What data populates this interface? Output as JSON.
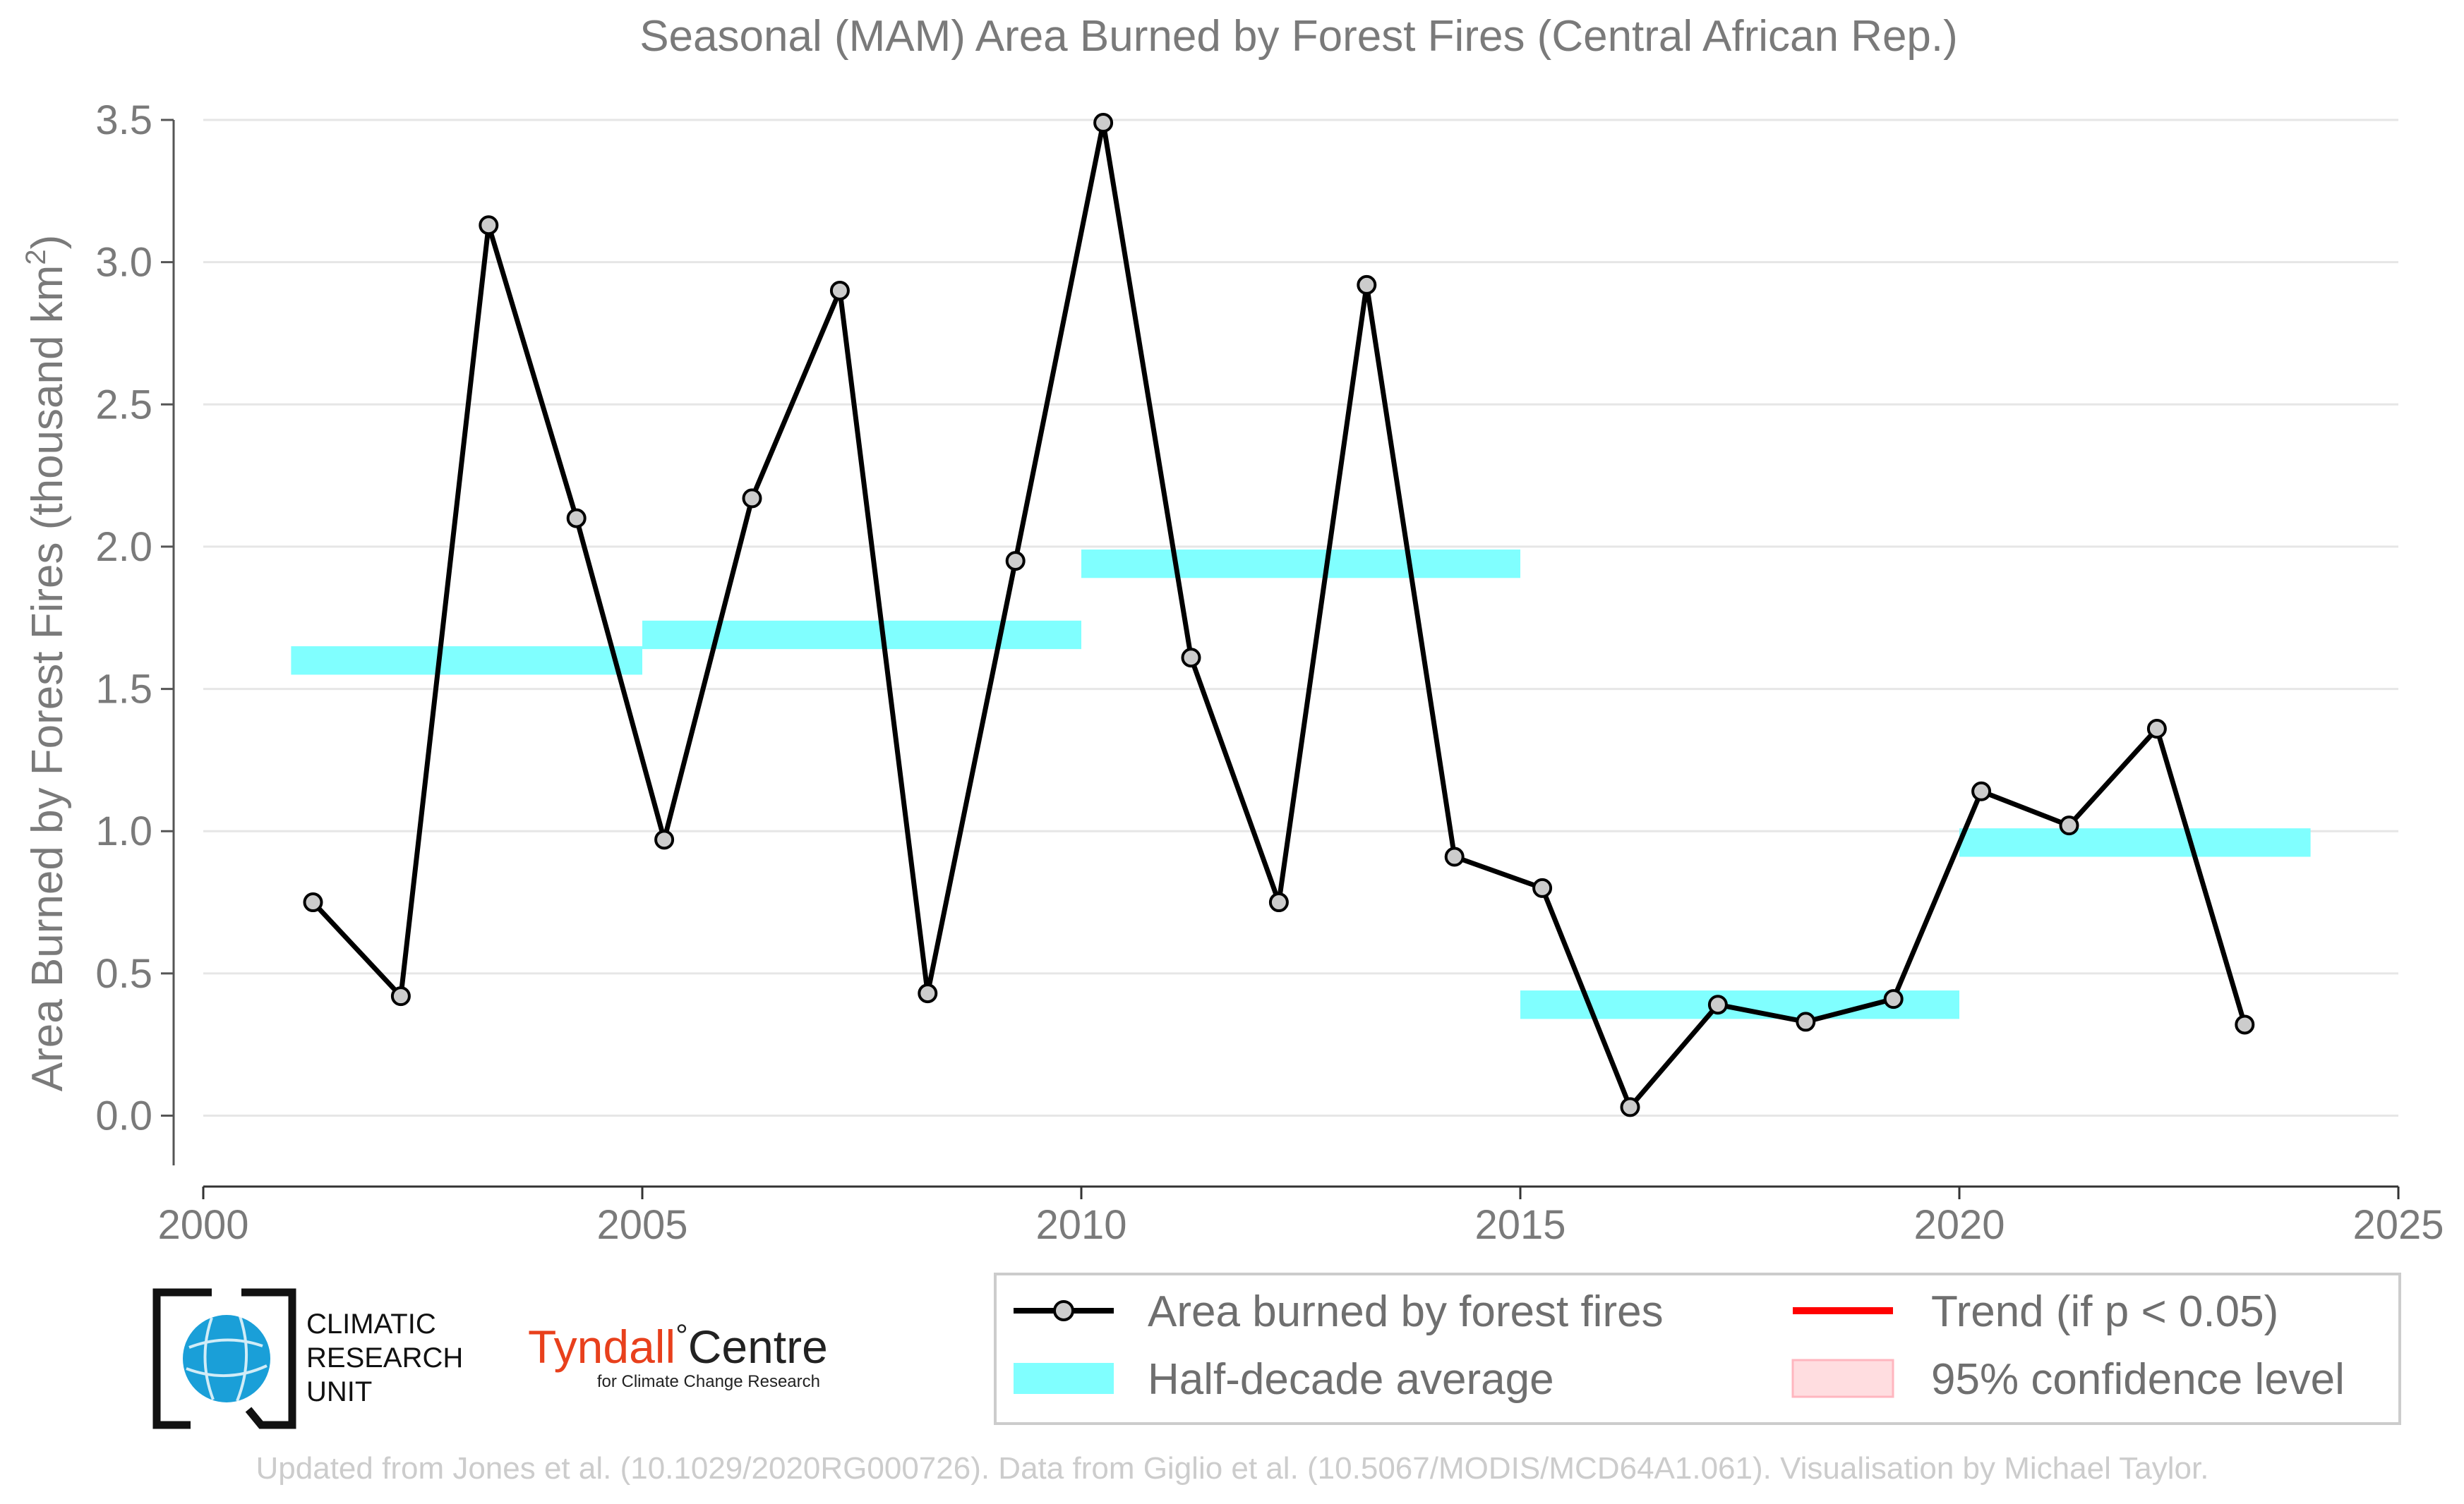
{
  "chart_data": {
    "type": "line",
    "title": "Seasonal (MAM) Area Burned by Forest Fires (Central African Rep.)",
    "ylabel": "Area Burned by Forest Fires (thousand km",
    "ylabel_sup": "2",
    "ylabel_close": ")",
    "xlim": [
      2000,
      2025
    ],
    "ylim": [
      -0.15,
      3.5
    ],
    "x_ticks": [
      2000,
      2005,
      2010,
      2015,
      2020,
      2025
    ],
    "x_tick_labels": [
      "2000",
      "2005",
      "2010",
      "2015",
      "2020",
      "2025"
    ],
    "y_ticks": [
      0.0,
      0.5,
      1.0,
      1.5,
      2.0,
      2.5,
      3.0,
      3.5
    ],
    "y_tick_labels": [
      "0.0",
      "0.5",
      "1.0",
      "1.5",
      "2.0",
      "2.5",
      "3.0",
      "3.5"
    ],
    "grid": "horizontal",
    "series": [
      {
        "name": "Area burned by forest fires",
        "color": "#000000",
        "marker_fill": "#cccccc",
        "x": [
          2001.25,
          2002.25,
          2003.25,
          2004.25,
          2005.25,
          2006.25,
          2007.25,
          2008.25,
          2009.25,
          2010.25,
          2011.25,
          2012.25,
          2013.25,
          2014.25,
          2015.25,
          2016.25,
          2017.25,
          2018.25,
          2019.25,
          2020.25,
          2021.25,
          2022.25,
          2023.25
        ],
        "values": [
          0.75,
          0.42,
          3.13,
          2.1,
          0.97,
          2.17,
          2.9,
          0.43,
          1.95,
          3.49,
          1.61,
          0.75,
          2.92,
          0.91,
          0.8,
          0.03,
          0.39,
          0.33,
          0.41,
          1.14,
          1.02,
          1.36,
          0.32
        ]
      }
    ],
    "half_decade_average": {
      "name": "Half-decade average",
      "color": "#80ffff",
      "segments": [
        {
          "x0": 2001,
          "x1": 2005,
          "value": 1.6
        },
        {
          "x0": 2005,
          "x1": 2010,
          "value": 1.69
        },
        {
          "x0": 2010,
          "x1": 2015,
          "value": 1.94
        },
        {
          "x0": 2015,
          "x1": 2020,
          "value": 0.39
        },
        {
          "x0": 2020,
          "x1": 2024,
          "value": 0.96
        }
      ]
    },
    "legend": {
      "placement": "bottom-right",
      "entries": [
        {
          "key": "series",
          "label": "Area burned by forest fires"
        },
        {
          "key": "trend",
          "label": "Trend (if p < 0.05)",
          "color": "#ff0000"
        },
        {
          "key": "average",
          "label": "Half-decade average",
          "color": "#80ffff"
        },
        {
          "key": "confidence",
          "label": "95% confidence level",
          "color": "#ffdde0"
        }
      ]
    }
  },
  "logos": {
    "cru_lines": [
      "CLIMATIC",
      "RESEARCH",
      "UNIT"
    ],
    "tyndall_name": "Tyndall",
    "tyndall_degree": "°",
    "tyndall_centre": "Centre",
    "tyndall_sub": "for Climate Change Research",
    "cru_color": "#1a9fd8",
    "tyndall_color": "#e8401c"
  },
  "footer": "Updated from Jones et al. (10.1029/2020RG000726). Data from Giglio et al. (10.5067/MODIS/MCD64A1.061). Visualisation by Michael Taylor."
}
